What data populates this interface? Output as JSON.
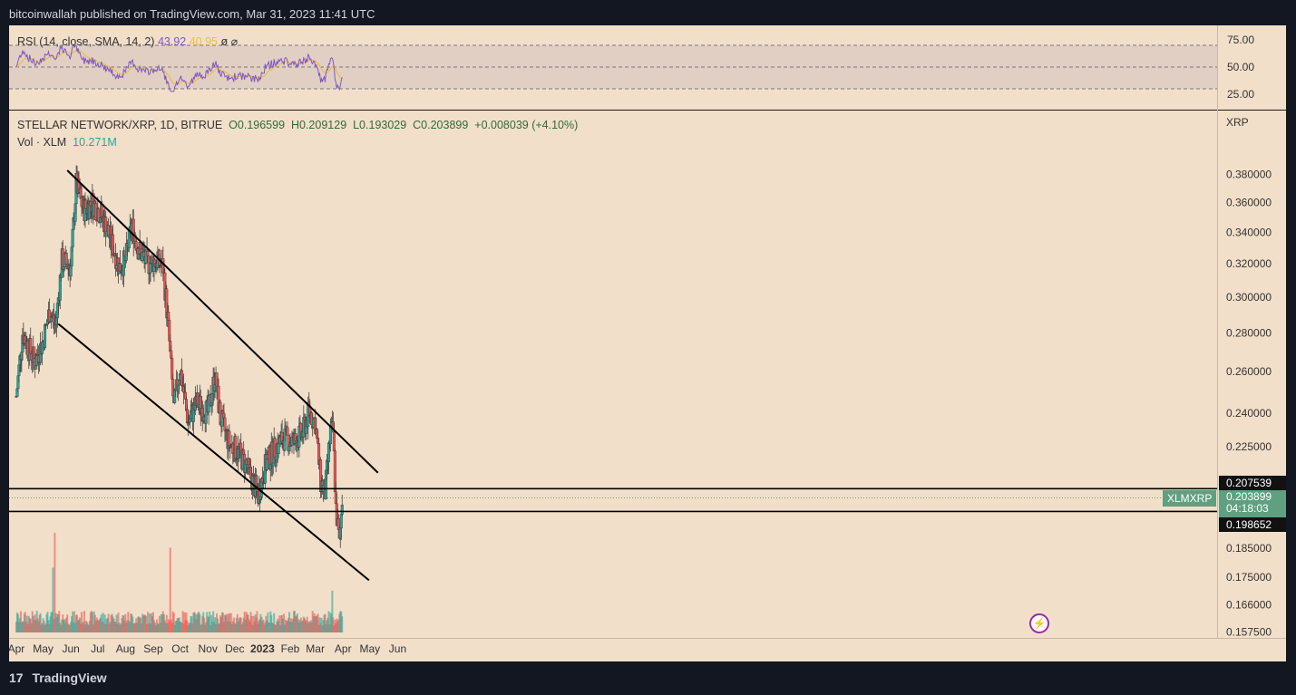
{
  "header": {
    "published": "bitcoinwallah published on TradingView.com, Mar 31, 2023 11:41 UTC"
  },
  "footer": {
    "logo": "17",
    "brand": "TradingView"
  },
  "rsi": {
    "label": "RSI (14, close, SMA, 14, 2)",
    "value": "43.92",
    "sma_value": "40.95",
    "ticks": [
      "75.00",
      "50.00",
      "25.00"
    ],
    "colors": {
      "rsi": "#7e57c2",
      "sma": "#e8c14a"
    }
  },
  "main": {
    "symbol_line": "STELLAR NETWORK/XRP, 1D, BITRUE",
    "open": "O0.196599",
    "high": "H0.209129",
    "low": "L0.193029",
    "close": "C0.203899",
    "change": "+0.008039 (+4.10%)",
    "vol_label": "Vol · XLM",
    "vol_value": "10.271M",
    "axis_unit": "XRP",
    "symbol_tag": "XLMXRP",
    "tag_upper": "0.207539",
    "tag_price": "0.203899",
    "tag_countdown": "04:18:03",
    "tag_lower": "0.198652",
    "colors": {
      "up": "#26a69a",
      "down": "#ef5350",
      "line": "#000000"
    }
  },
  "chart_data": {
    "type": "candlestick",
    "y_scale": "log",
    "ylim": [
      0.1575,
      0.392
    ],
    "y_ticks": [
      "0.380000",
      "0.360000",
      "0.340000",
      "0.320000",
      "0.300000",
      "0.280000",
      "0.260000",
      "0.240000",
      "0.225000",
      "0.207539",
      "0.185000",
      "0.175000",
      "0.166000",
      "0.157500"
    ],
    "x_ticks": [
      "Apr",
      "May",
      "Jun",
      "Jul",
      "Aug",
      "Sep",
      "Oct",
      "Nov",
      "Dec",
      "2023",
      "Feb",
      "Mar",
      "Apr",
      "May",
      "Jun"
    ],
    "price_path": [
      [
        "2022-04-01",
        0.248
      ],
      [
        "2022-04-08",
        0.28
      ],
      [
        "2022-04-15",
        0.272
      ],
      [
        "2022-04-22",
        0.265
      ],
      [
        "2022-05-01",
        0.276
      ],
      [
        "2022-05-08",
        0.292
      ],
      [
        "2022-05-15",
        0.284
      ],
      [
        "2022-05-22",
        0.322
      ],
      [
        "2022-06-01",
        0.318
      ],
      [
        "2022-06-07",
        0.373
      ],
      [
        "2022-06-15",
        0.355
      ],
      [
        "2022-06-25",
        0.36
      ],
      [
        "2022-07-05",
        0.352
      ],
      [
        "2022-07-15",
        0.336
      ],
      [
        "2022-07-25",
        0.318
      ],
      [
        "2022-08-01",
        0.322
      ],
      [
        "2022-08-08",
        0.345
      ],
      [
        "2022-08-15",
        0.33
      ],
      [
        "2022-08-25",
        0.32
      ],
      [
        "2022-09-05",
        0.322
      ],
      [
        "2022-09-12",
        0.318
      ],
      [
        "2022-09-18",
        0.282
      ],
      [
        "2022-09-24",
        0.242
      ],
      [
        "2022-10-01",
        0.262
      ],
      [
        "2022-10-10",
        0.236
      ],
      [
        "2022-10-20",
        0.245
      ],
      [
        "2022-11-01",
        0.24
      ],
      [
        "2022-11-09",
        0.258
      ],
      [
        "2022-11-15",
        0.238
      ],
      [
        "2022-11-25",
        0.226
      ],
      [
        "2022-12-05",
        0.223
      ],
      [
        "2022-12-15",
        0.216
      ],
      [
        "2022-12-27",
        0.205
      ],
      [
        "2023-01-05",
        0.218
      ],
      [
        "2023-01-15",
        0.224
      ],
      [
        "2023-01-25",
        0.229
      ],
      [
        "2023-02-05",
        0.227
      ],
      [
        "2023-02-15",
        0.231
      ],
      [
        "2023-02-22",
        0.241
      ],
      [
        "2023-03-01",
        0.236
      ],
      [
        "2023-03-07",
        0.21
      ],
      [
        "2023-03-12",
        0.206
      ],
      [
        "2023-03-18",
        0.232
      ],
      [
        "2023-03-21",
        0.231
      ],
      [
        "2023-03-24",
        0.2
      ],
      [
        "2023-03-28",
        0.186
      ],
      [
        "2023-03-31",
        0.203899
      ]
    ],
    "trendlines": [
      {
        "name": "upper",
        "from": [
          "2022-05-28",
          0.383
        ],
        "to": [
          "2023-05-10",
          0.214
        ]
      },
      {
        "name": "lower",
        "from": [
          "2022-05-18",
          0.285
        ],
        "to": [
          "2023-04-30",
          0.174
        ]
      },
      {
        "name": "support",
        "value": 0.207539
      },
      {
        "name": "resistance",
        "value": 0.198652
      }
    ],
    "volume_spikes": [
      [
        "2022-05-14",
        10.0
      ],
      [
        "2022-05-12",
        6.5
      ],
      [
        "2022-09-20",
        8.5
      ],
      [
        "2023-03-20",
        4.2
      ]
    ]
  }
}
